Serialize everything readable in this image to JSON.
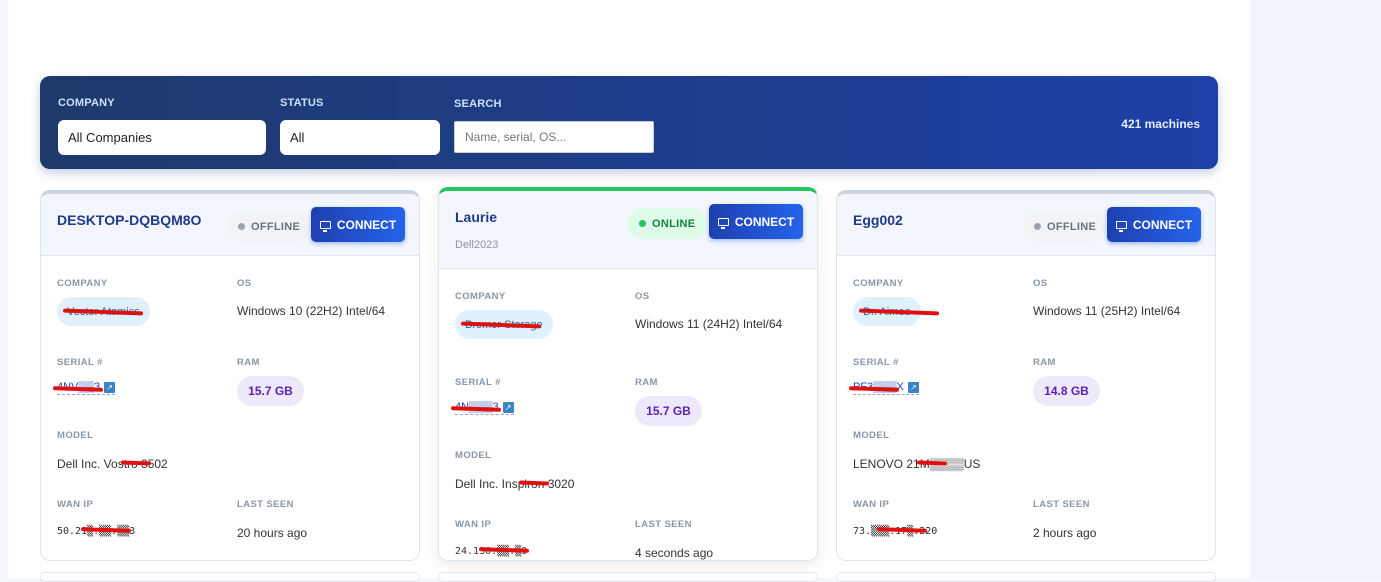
{
  "filters": {
    "company_label": "COMPANY",
    "company_value": "All Companies",
    "status_label": "STATUS",
    "status_value": "All",
    "search_label": "SEARCH",
    "search_placeholder": "Name, serial, OS...",
    "count": "421 machines"
  },
  "labels": {
    "company": "COMPANY",
    "os": "OS",
    "serial": "SERIAL #",
    "ram": "RAM",
    "model": "MODEL",
    "wan_ip": "WAN IP",
    "last_seen": "LAST SEEN",
    "connect": "CONNECT"
  },
  "colors": {
    "online": "#22c55e",
    "offline": "#9ca3af",
    "accent": "#1e40af"
  },
  "machines": [
    {
      "name": "DESKTOP-DQBQM8O",
      "subtitle": "",
      "status": "OFFLINE",
      "company": "Vector Atomics",
      "os": "Windows 10 (22H2) Intel/64",
      "serial": "4NV▒▒3",
      "ram": "15.7 GB",
      "model": "Dell Inc. Vostro 3502",
      "wan_ip": "50.21▒.▒▒.▒▒3",
      "last_seen": "20 hours ago"
    },
    {
      "name": "Laurie",
      "subtitle": "Dell2023",
      "status": "ONLINE",
      "company": "Bremer Storage",
      "os": "Windows 11 (24H2) Intel/64",
      "serial": "4N▒▒▒3",
      "ram": "15.7 GB",
      "model": "Dell Inc. Inspiron 3020",
      "wan_ip": "24.130.▒▒.▒9",
      "last_seen": "4 seconds ago"
    },
    {
      "name": "Egg002",
      "subtitle": "",
      "status": "OFFLINE",
      "company": "Dr. Aimee",
      "os": "Windows 11 (25H2) Intel/64",
      "serial": "PF3▒▒▒X",
      "ram": "14.8 GB",
      "model": "LENOVO 21M▒▒▒▒US",
      "wan_ip": "73.▒▒▒.17▒.220",
      "last_seen": "2 hours ago"
    }
  ]
}
